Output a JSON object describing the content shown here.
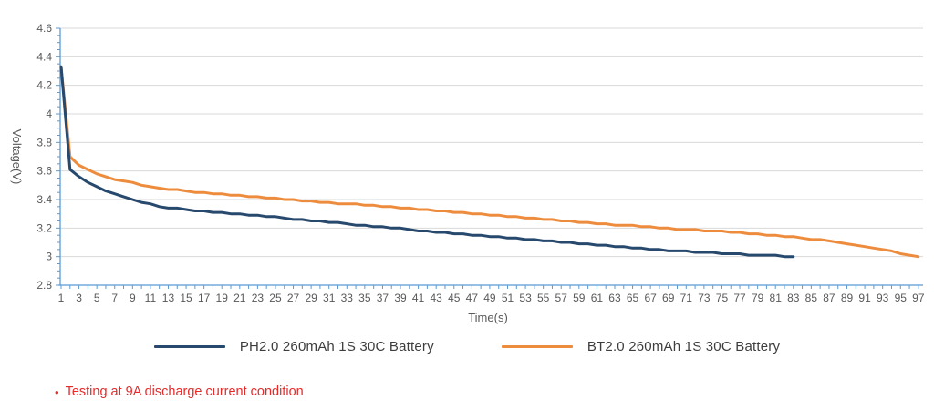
{
  "chart_data": {
    "type": "line",
    "title": "",
    "xlabel": "Time(s)",
    "ylabel": "Voltage(V)",
    "ylim": [
      2.8,
      4.6
    ],
    "y_tick_step": 0.2,
    "y_minor_tick_step": 0.05,
    "x_tick_labels": [
      1,
      3,
      5,
      7,
      9,
      11,
      13,
      15,
      17,
      19,
      21,
      23,
      25,
      27,
      29,
      31,
      33,
      35,
      37,
      39,
      41,
      43,
      45,
      47,
      49,
      51,
      53,
      55,
      57,
      59,
      61,
      63,
      65,
      67,
      69,
      71,
      73,
      75,
      77,
      79,
      81,
      83,
      85,
      87,
      89,
      91,
      93,
      95,
      97
    ],
    "grid": "horizontal",
    "legend_position": "bottom",
    "axis_color": "#5b9bd5",
    "grid_color": "#d9d9d9",
    "tick_label_color": "#595959",
    "series": [
      {
        "name": "PH2.0 260mAh 1S 30C Battery",
        "color": "#27496d",
        "x_start": 1,
        "values": [
          4.33,
          3.61,
          3.56,
          3.52,
          3.49,
          3.46,
          3.44,
          3.42,
          3.4,
          3.38,
          3.37,
          3.35,
          3.34,
          3.34,
          3.33,
          3.32,
          3.32,
          3.31,
          3.31,
          3.3,
          3.3,
          3.29,
          3.29,
          3.28,
          3.28,
          3.27,
          3.26,
          3.26,
          3.25,
          3.25,
          3.24,
          3.24,
          3.23,
          3.22,
          3.22,
          3.21,
          3.21,
          3.2,
          3.2,
          3.19,
          3.18,
          3.18,
          3.17,
          3.17,
          3.16,
          3.16,
          3.15,
          3.15,
          3.14,
          3.14,
          3.13,
          3.13,
          3.12,
          3.12,
          3.11,
          3.11,
          3.1,
          3.1,
          3.09,
          3.09,
          3.08,
          3.08,
          3.07,
          3.07,
          3.06,
          3.06,
          3.05,
          3.05,
          3.04,
          3.04,
          3.04,
          3.03,
          3.03,
          3.03,
          3.02,
          3.02,
          3.02,
          3.01,
          3.01,
          3.01,
          3.01,
          3.0,
          3.0
        ]
      },
      {
        "name": "BT2.0 260mAh 1S 30C Battery",
        "color": "#ee8c3e",
        "x_start": 1,
        "values": [
          4.33,
          3.7,
          3.64,
          3.61,
          3.58,
          3.56,
          3.54,
          3.53,
          3.52,
          3.5,
          3.49,
          3.48,
          3.47,
          3.47,
          3.46,
          3.45,
          3.45,
          3.44,
          3.44,
          3.43,
          3.43,
          3.42,
          3.42,
          3.41,
          3.41,
          3.4,
          3.4,
          3.39,
          3.39,
          3.38,
          3.38,
          3.37,
          3.37,
          3.37,
          3.36,
          3.36,
          3.35,
          3.35,
          3.34,
          3.34,
          3.33,
          3.33,
          3.32,
          3.32,
          3.31,
          3.31,
          3.3,
          3.3,
          3.29,
          3.29,
          3.28,
          3.28,
          3.27,
          3.27,
          3.26,
          3.26,
          3.25,
          3.25,
          3.24,
          3.24,
          3.23,
          3.23,
          3.22,
          3.22,
          3.22,
          3.21,
          3.21,
          3.2,
          3.2,
          3.19,
          3.19,
          3.19,
          3.18,
          3.18,
          3.18,
          3.17,
          3.17,
          3.16,
          3.16,
          3.15,
          3.15,
          3.14,
          3.14,
          3.13,
          3.12,
          3.12,
          3.11,
          3.1,
          3.09,
          3.08,
          3.07,
          3.06,
          3.05,
          3.04,
          3.02,
          3.01,
          3.0
        ]
      }
    ]
  },
  "annotation": {
    "bullet": "•",
    "text": "Testing at 9A discharge current condition",
    "color": "#e62a2a"
  }
}
